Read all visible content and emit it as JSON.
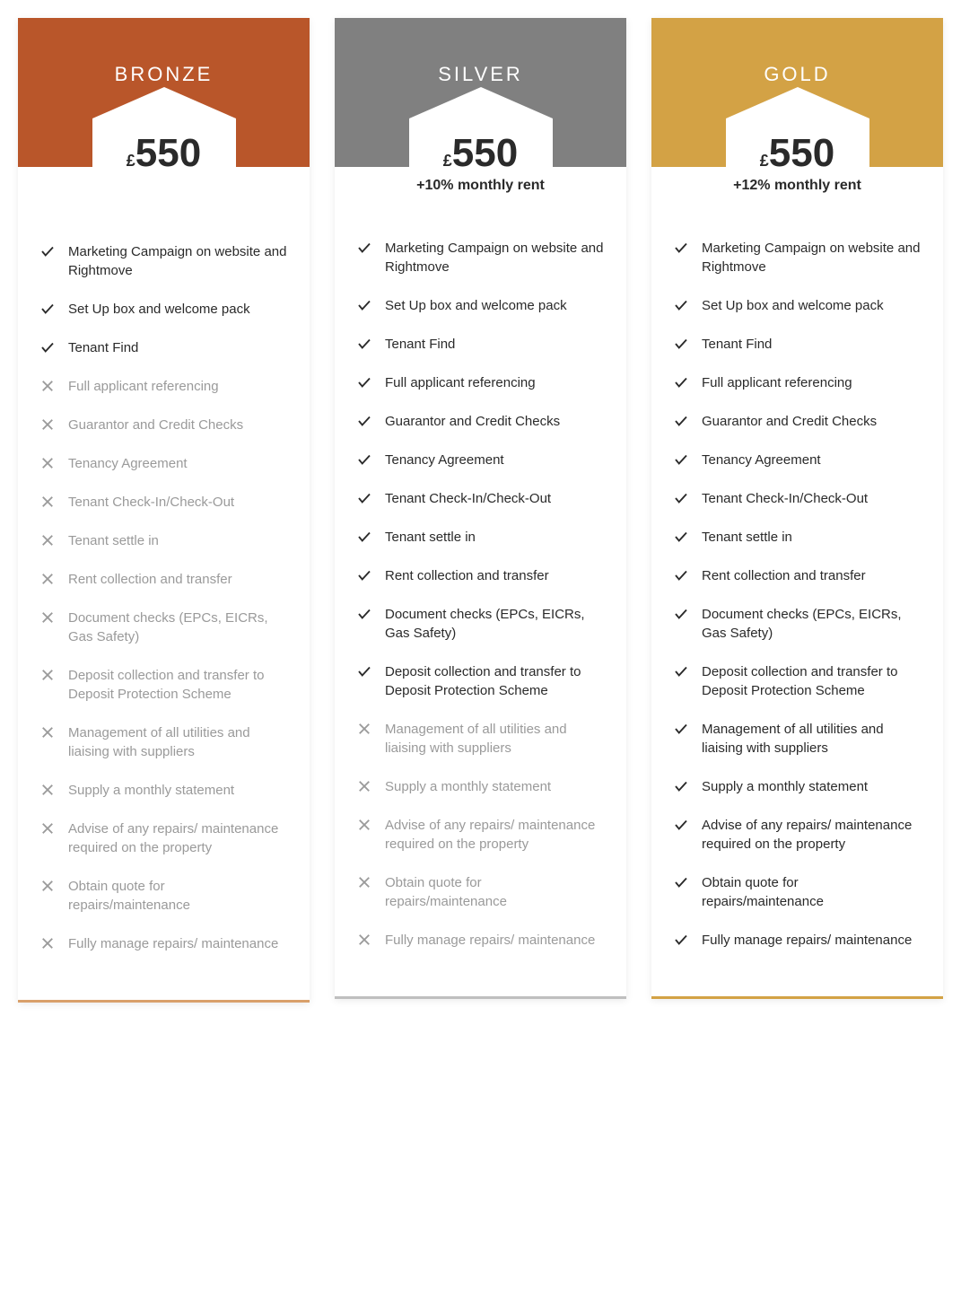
{
  "features": [
    "Marketing Campaign on website and Rightmove",
    "Set Up box and welcome pack",
    "Tenant Find",
    "Full applicant referencing",
    "Guarantor and Credit Checks",
    "Tenancy Agreement",
    "Tenant Check-In/Check-Out",
    "Tenant settle in",
    "Rent collection and transfer",
    "Document checks (EPCs, EICRs, Gas Safety)",
    "Deposit collection and transfer to Deposit Protection Scheme",
    "Management of all utilities and liaising with suppliers",
    "Supply a monthly statement",
    "Advise of any repairs/ maintenance required on the property",
    "Obtain quote for repairs/maintenance",
    "Fully manage repairs/ maintenance"
  ],
  "tiers": [
    {
      "name": "BRONZE",
      "header_color": "#b9562a",
      "border_color": "#d9a06b",
      "currency": "£",
      "price": "550",
      "extra": "",
      "included": [
        true,
        true,
        true,
        false,
        false,
        false,
        false,
        false,
        false,
        false,
        false,
        false,
        false,
        false,
        false,
        false
      ]
    },
    {
      "name": "SILVER",
      "header_color": "#808080",
      "border_color": "#bfbfbf",
      "currency": "£",
      "price": "550",
      "extra": "+10% monthly rent",
      "included": [
        true,
        true,
        true,
        true,
        true,
        true,
        true,
        true,
        true,
        true,
        true,
        false,
        false,
        false,
        false,
        false
      ]
    },
    {
      "name": "GOLD",
      "header_color": "#d3a245",
      "border_color": "#d3a245",
      "currency": "£",
      "price": "550",
      "extra": "+12% monthly rent",
      "included": [
        true,
        true,
        true,
        true,
        true,
        true,
        true,
        true,
        true,
        true,
        true,
        true,
        true,
        true,
        true,
        true
      ]
    }
  ]
}
